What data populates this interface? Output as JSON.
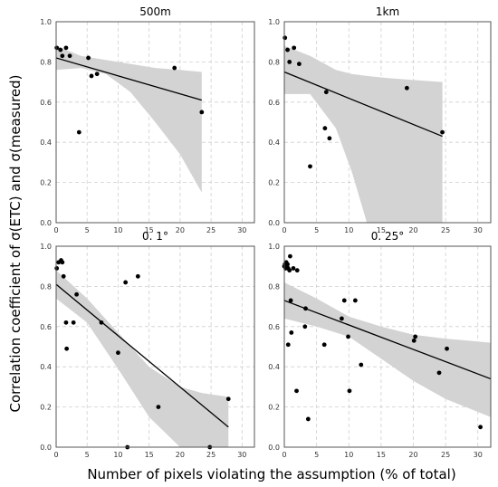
{
  "figure": {
    "ylabel": "Correlation coefficient of σ(ETC) and σ(measured)",
    "xlabel": "Number of pixels violating the assumption (% of total)"
  },
  "chart_data": [
    {
      "type": "scatter",
      "title": "500m",
      "xlim": [
        0,
        32
      ],
      "ylim": [
        0,
        1.0
      ],
      "xticks": [
        0,
        5,
        10,
        15,
        20,
        25,
        30
      ],
      "yticks": [
        0.0,
        0.2,
        0.4,
        0.6,
        0.8,
        1.0
      ],
      "grid": true,
      "points": [
        [
          0.1,
          0.87
        ],
        [
          0.7,
          0.86
        ],
        [
          1.0,
          0.83
        ],
        [
          1.6,
          0.87
        ],
        [
          2.2,
          0.83
        ],
        [
          3.7,
          0.45
        ],
        [
          5.2,
          0.82
        ],
        [
          5.7,
          0.73
        ],
        [
          6.6,
          0.74
        ],
        [
          19.1,
          0.77
        ],
        [
          23.5,
          0.55
        ]
      ],
      "fit_line": [
        [
          0,
          0.82
        ],
        [
          23.5,
          0.61
        ]
      ],
      "confidence_band": {
        "x": [
          0,
          4,
          8,
          12,
          16,
          20,
          23.5
        ],
        "upper": [
          0.88,
          0.83,
          0.81,
          0.79,
          0.77,
          0.76,
          0.75
        ],
        "lower": [
          0.76,
          0.77,
          0.74,
          0.65,
          0.5,
          0.34,
          0.15
        ]
      }
    },
    {
      "type": "scatter",
      "title": "1km",
      "xlim": [
        0,
        32
      ],
      "ylim": [
        0,
        1.0
      ],
      "xticks": [
        0,
        5,
        10,
        15,
        20,
        25,
        30
      ],
      "yticks": [
        0.0,
        0.2,
        0.4,
        0.6,
        0.8,
        1.0
      ],
      "grid": true,
      "points": [
        [
          0.1,
          0.92
        ],
        [
          0.5,
          0.86
        ],
        [
          0.8,
          0.8
        ],
        [
          1.5,
          0.87
        ],
        [
          2.3,
          0.79
        ],
        [
          4.0,
          0.28
        ],
        [
          6.3,
          0.47
        ],
        [
          6.5,
          0.65
        ],
        [
          7.0,
          0.42
        ],
        [
          19.0,
          0.67
        ],
        [
          24.5,
          0.45
        ]
      ],
      "fit_line": [
        [
          0,
          0.75
        ],
        [
          24.5,
          0.43
        ]
      ],
      "confidence_band": {
        "x": [
          0,
          4,
          8,
          10.5,
          12.8,
          16,
          20,
          24.5
        ],
        "upper": [
          0.88,
          0.83,
          0.76,
          0.74,
          0.73,
          0.72,
          0.71,
          0.7
        ],
        "lower": [
          0.64,
          0.64,
          0.47,
          0.25,
          0.0,
          0.0,
          0.0,
          0.0
        ]
      }
    },
    {
      "type": "scatter",
      "title": "0. 1°",
      "xlim": [
        0,
        32
      ],
      "ylim": [
        0,
        1.0
      ],
      "xticks": [
        0,
        5,
        10,
        15,
        20,
        25,
        30
      ],
      "yticks": [
        0.0,
        0.2,
        0.4,
        0.6,
        0.8,
        1.0
      ],
      "grid": true,
      "points": [
        [
          0.1,
          0.89
        ],
        [
          0.4,
          0.92
        ],
        [
          0.8,
          0.93
        ],
        [
          1.0,
          0.92
        ],
        [
          1.2,
          0.85
        ],
        [
          1.6,
          0.62
        ],
        [
          1.7,
          0.49
        ],
        [
          2.8,
          0.62
        ],
        [
          3.3,
          0.76
        ],
        [
          7.3,
          0.62
        ],
        [
          10.0,
          0.47
        ],
        [
          11.2,
          0.82
        ],
        [
          11.5,
          0.0
        ],
        [
          13.2,
          0.85
        ],
        [
          16.5,
          0.2
        ],
        [
          24.8,
          0.0
        ],
        [
          27.8,
          0.24
        ]
      ],
      "fit_line": [
        [
          0,
          0.81
        ],
        [
          27.8,
          0.1
        ]
      ],
      "confidence_band": {
        "x": [
          0,
          5,
          10,
          15,
          20,
          23.5,
          27.8
        ],
        "upper": [
          0.88,
          0.74,
          0.57,
          0.4,
          0.3,
          0.27,
          0.25
        ],
        "lower": [
          0.74,
          0.62,
          0.39,
          0.15,
          0.0,
          0.0,
          0.0
        ]
      }
    },
    {
      "type": "scatter",
      "title": "0. 25°",
      "xlim": [
        0,
        32
      ],
      "ylim": [
        0,
        1.0
      ],
      "xticks": [
        0,
        5,
        10,
        15,
        20,
        25,
        30
      ],
      "yticks": [
        0.0,
        0.2,
        0.4,
        0.6,
        0.8,
        1.0
      ],
      "grid": true,
      "points": [
        [
          0.0,
          0.9
        ],
        [
          0.1,
          0.91
        ],
        [
          0.2,
          0.89
        ],
        [
          0.3,
          0.92
        ],
        [
          0.4,
          0.9
        ],
        [
          0.5,
          0.91
        ],
        [
          0.6,
          0.89
        ],
        [
          0.8,
          0.88
        ],
        [
          0.6,
          0.51
        ],
        [
          0.9,
          0.95
        ],
        [
          1.0,
          0.73
        ],
        [
          1.1,
          0.57
        ],
        [
          1.4,
          0.89
        ],
        [
          1.9,
          0.28
        ],
        [
          2.0,
          0.88
        ],
        [
          3.2,
          0.6
        ],
        [
          3.3,
          0.69
        ],
        [
          3.7,
          0.14
        ],
        [
          6.2,
          0.51
        ],
        [
          8.9,
          0.64
        ],
        [
          9.3,
          0.73
        ],
        [
          9.9,
          0.55
        ],
        [
          10.1,
          0.28
        ],
        [
          11.0,
          0.73
        ],
        [
          11.9,
          0.41
        ],
        [
          20.1,
          0.53
        ],
        [
          20.3,
          0.55
        ],
        [
          24.0,
          0.37
        ],
        [
          25.2,
          0.49
        ],
        [
          30.4,
          0.1
        ]
      ],
      "fit_line": [
        [
          0,
          0.73
        ],
        [
          32,
          0.34
        ]
      ],
      "confidence_band": {
        "x": [
          0,
          5,
          10,
          15,
          20,
          25,
          32
        ],
        "upper": [
          0.82,
          0.74,
          0.65,
          0.6,
          0.56,
          0.54,
          0.52
        ],
        "lower": [
          0.64,
          0.6,
          0.55,
          0.44,
          0.33,
          0.24,
          0.15
        ]
      }
    }
  ]
}
